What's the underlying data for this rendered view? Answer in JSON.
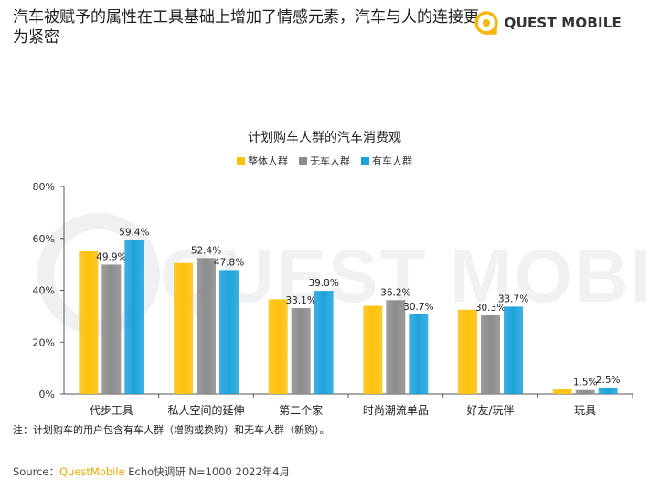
{
  "headline": "汽车被赋予的属性在工具基础上增加了情感元素，汽车与人的连接更为紧密",
  "brand": {
    "name": "QUEST MOBILE",
    "watermark": "QUEST MOBILE"
  },
  "colors": {
    "series1": "#fdc10a",
    "series2": "#8c8c8c",
    "series3": "#1ea2dc",
    "accent": "#f0a80a"
  },
  "chart_data": {
    "type": "bar",
    "title": "计划购车人群的汽车消费观",
    "categories": [
      "代步工具",
      "私人空间的延伸",
      "第二个家",
      "时尚潮流单品",
      "好友/玩伴",
      "玩具"
    ],
    "series": [
      {
        "name": "整体人群",
        "values": [
          55.0,
          50.5,
          36.5,
          34.0,
          32.5,
          2.0
        ]
      },
      {
        "name": "无车人群",
        "values": [
          49.9,
          52.4,
          33.1,
          36.2,
          30.3,
          1.5
        ]
      },
      {
        "name": "有车人群",
        "values": [
          59.4,
          47.8,
          39.8,
          30.7,
          33.7,
          2.5
        ]
      }
    ],
    "data_labels": [
      [
        null,
        null,
        null,
        null,
        null,
        null
      ],
      [
        "49.9%",
        "52.4%",
        "33.1%",
        "36.2%",
        "30.3%",
        "1.5%"
      ],
      [
        "59.4%",
        "47.8%",
        "39.8%",
        "30.7%",
        "33.7%",
        "2.5%"
      ]
    ],
    "ylim": [
      0,
      80
    ],
    "yticks": [
      "0%",
      "20%",
      "40%",
      "60%",
      "80%"
    ],
    "ytick_values": [
      0,
      20,
      40,
      60,
      80
    ],
    "legend_position": "top-center",
    "grid": false
  },
  "note": "注：计划购车的用户包含有车人群（增购或换购）和无车人群（新购）。",
  "source": {
    "prefix": "Source：",
    "brand": "QuestMobile",
    "rest": " Echo快调研 N=1000 2022年4月"
  }
}
